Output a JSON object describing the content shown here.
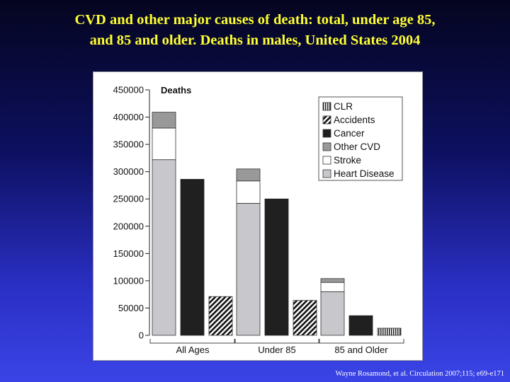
{
  "slide": {
    "title_line1": "CVD and other major causes of death: total, under age 85,",
    "title_line2": "and 85 and older. Deaths in males, United States 2004",
    "citation": "Wayne Rosamond, et al. Circulation  2007;115; e69-e171"
  },
  "chart_data": {
    "type": "bar",
    "ylabel": "Deaths",
    "ylim": [
      0,
      450000
    ],
    "yticks": [
      0,
      50000,
      100000,
      150000,
      200000,
      250000,
      300000,
      350000,
      400000,
      450000
    ],
    "categories": [
      "All Ages",
      "Under 85",
      "85 and Older"
    ],
    "legend_position": "top-right",
    "legend": [
      "CLR",
      "Accidents",
      "Cancer",
      "Other CVD",
      "Stroke",
      "Heart Disease"
    ],
    "groups": [
      {
        "category": "All Ages",
        "cvd_stack": {
          "Heart Disease": 322000,
          "Stroke": 58000,
          "Other CVD": 29000
        },
        "Cancer": 286000,
        "Accidents": 71000
      },
      {
        "category": "Under 85",
        "cvd_stack": {
          "Heart Disease": 242000,
          "Stroke": 41000,
          "Other CVD": 22000
        },
        "Cancer": 250000,
        "Accidents": 64000
      },
      {
        "category": "85 and Older",
        "cvd_stack": {
          "Heart Disease": 80000,
          "Stroke": 17000,
          "Other CVD": 7000
        },
        "Cancer": 36000,
        "CLR": 13000
      }
    ],
    "colors": {
      "Heart Disease": "#c8c8cc",
      "Stroke": "#ffffff",
      "Other CVD": "#999999",
      "Cancer": "#202020"
    },
    "patterns": {
      "Accidents": "diagonal-hatch",
      "CLR": "vertical-stripes"
    }
  }
}
